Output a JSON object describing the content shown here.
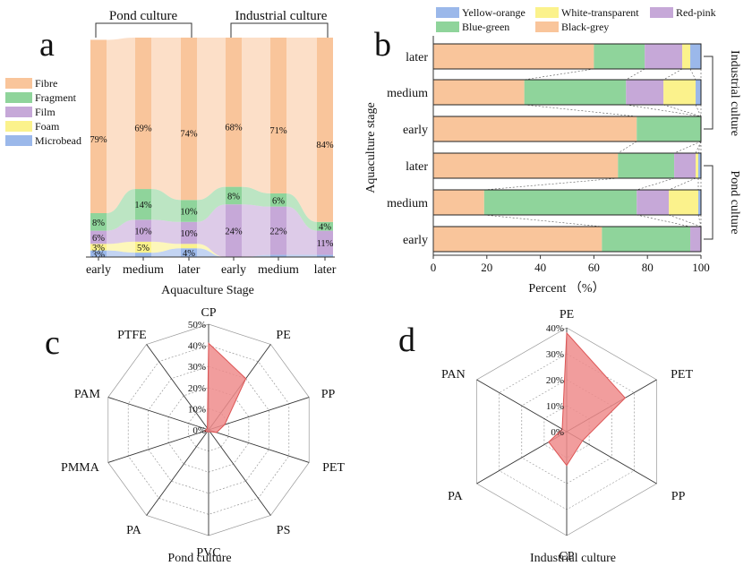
{
  "chart_data": [
    {
      "panel": "a",
      "type": "stacked-bar",
      "xlabel": "Aquaculture Stage",
      "group_labels": [
        "Pond culture",
        "Industrial culture"
      ],
      "categories": [
        "early",
        "medium",
        "later",
        "early",
        "medium",
        "later"
      ],
      "series": [
        {
          "name": "Fibre",
          "values": [
            79,
            69,
            74,
            68,
            71,
            84
          ],
          "color": "#F9C59B"
        },
        {
          "name": "Fragment",
          "values": [
            8,
            14,
            10,
            8,
            6,
            4
          ],
          "color": "#8FD49B"
        },
        {
          "name": "Film",
          "values": [
            6,
            10,
            10,
            24,
            22,
            11
          ],
          "color": "#C6A8D8"
        },
        {
          "name": "Foam",
          "values": [
            3,
            5,
            2,
            0,
            0,
            0
          ],
          "color": "#FBF28C"
        },
        {
          "name": "Microbead",
          "values": [
            3,
            2,
            4,
            0,
            1,
            1
          ],
          "color": "#9BB8EA"
        }
      ],
      "value_labels": [
        {
          "series": "Fibre",
          "labels": [
            "79%",
            "69%",
            "74%",
            "68%",
            "71%",
            "84%"
          ]
        },
        {
          "series": "Fragment",
          "labels": [
            "8%",
            "14%",
            "10%",
            "8%",
            "6%",
            "4%"
          ]
        },
        {
          "series": "Film",
          "labels": [
            "6%",
            "10%",
            "10%",
            "24%",
            "22%",
            "11%"
          ]
        },
        {
          "series": "Foam",
          "labels": [
            "3%",
            "5%",
            "",
            "",
            "",
            ""
          ]
        },
        {
          "series": "Microbead",
          "labels": [
            "3%",
            "",
            "4%",
            "",
            "",
            ""
          ]
        }
      ]
    },
    {
      "panel": "b",
      "type": "horizontal-stacked-bar",
      "xlabel": "Percent （%）",
      "ylabel": "Aquaculture stage",
      "xlim": [
        0,
        100
      ],
      "xticks": [
        "0",
        "20",
        "40",
        "60",
        "80",
        "100"
      ],
      "categories": [
        "later",
        "medium",
        "early",
        "later",
        "medium",
        "early"
      ],
      "group_labels": [
        "Industrial culture",
        "Pond culture"
      ],
      "series": [
        {
          "name": "Black-grey",
          "values": [
            60,
            34,
            76,
            69,
            19,
            63
          ],
          "color": "#F9C59B"
        },
        {
          "name": "Blue-green",
          "values": [
            19,
            38,
            24,
            21,
            57,
            33
          ],
          "color": "#8FD49B"
        },
        {
          "name": "Red-pink",
          "values": [
            14,
            14,
            0,
            8,
            12,
            4
          ],
          "color": "#C6A8D8"
        },
        {
          "name": "White-transparent",
          "values": [
            3,
            12,
            0,
            1,
            11,
            0
          ],
          "color": "#FBF28C"
        },
        {
          "name": "Yellow-orange",
          "values": [
            4,
            2,
            0,
            1,
            1,
            0
          ],
          "color": "#9BB8EA"
        }
      ],
      "legend": [
        "Yellow-orange",
        "White-transparent",
        "Red-pink",
        "Blue-green",
        "Black-grey"
      ]
    },
    {
      "panel": "c",
      "type": "radar",
      "title": "Pond culture",
      "axes": [
        "CP",
        "PE",
        "PP",
        "PET",
        "PS",
        "PVC",
        "PA",
        "PMMA",
        "PAM",
        "PTFE"
      ],
      "values": [
        41,
        30,
        8,
        4,
        1,
        1,
        1,
        2,
        1,
        1
      ],
      "rmax": 50,
      "ticks": [
        "0%",
        "10%",
        "20%",
        "30%",
        "40%",
        "50%"
      ],
      "color": "#EE8C8C"
    },
    {
      "panel": "d",
      "type": "radar",
      "title": "Industrial culture",
      "axes": [
        "PE",
        "PET",
        "PP",
        "CP",
        "PA",
        "PAN"
      ],
      "values": [
        38,
        26,
        7,
        13,
        8,
        2
      ],
      "rmax": 40,
      "ticks": [
        "0%",
        "10%",
        "20%",
        "30%",
        "40%"
      ],
      "color": "#EE8C8C"
    }
  ],
  "panel_labels": {
    "a": "a",
    "b": "b",
    "c": "c",
    "d": "d"
  }
}
